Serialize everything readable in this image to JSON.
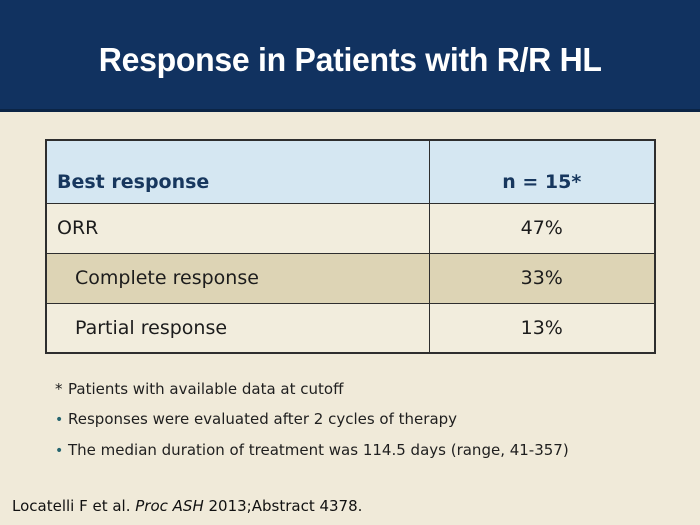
{
  "title": "Response in Patients with R/R HL",
  "table": {
    "header": [
      "Best response",
      "n = 15*"
    ],
    "rows": [
      {
        "label": "ORR",
        "value": "47%"
      },
      {
        "label": "Complete response",
        "value": "33%"
      },
      {
        "label": "Partial response",
        "value": "13%"
      }
    ]
  },
  "footnotes": [
    {
      "marker": "*",
      "text": "Patients with available data at cutoff"
    },
    {
      "marker": "•",
      "text": "Responses were evaluated after 2 cycles of therapy"
    },
    {
      "marker": "•",
      "text": "The median duration of treatment was 114.5 days (range, 41-357)"
    }
  ],
  "citation": {
    "prefix": "Locatelli F et al. ",
    "source": "Proc ASH",
    "suffix": " 2013;Abstract 4378."
  },
  "colors": {
    "title_band_navy": "#113260",
    "title_text": "#ffffff",
    "background_cream": "#f0ead9",
    "table_header_blue": "#d5e7f2",
    "table_row_cream": "#f2eddd",
    "table_row_tan": "#ddd4b5",
    "table_border": "#2e2e2e",
    "table_header_text_navy": "#17375e",
    "body_text": "#1c1c1c",
    "bullet_teal": "#26656f"
  }
}
